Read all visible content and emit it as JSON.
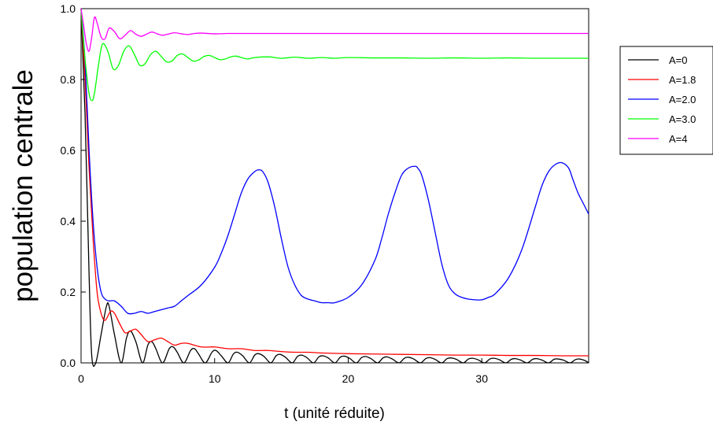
{
  "chart_data": {
    "type": "line",
    "title": "",
    "xlabel": "t (unité réduite)",
    "ylabel": "population centrale",
    "xlim": [
      0,
      38
    ],
    "ylim": [
      0,
      1
    ],
    "xticks": [
      0,
      10,
      20,
      30
    ],
    "xtick_labels": [
      "0",
      "10",
      "20",
      "30"
    ],
    "yticks": [
      0,
      0.2,
      0.4,
      0.6,
      0.8,
      1.0
    ],
    "ytick_labels": [
      "0.0",
      "0.2",
      "0.4",
      "0.6",
      "0.8",
      "1.0"
    ],
    "grid": false,
    "legend": "right",
    "series": [
      {
        "name": "A=0",
        "color": "#000000",
        "x": [
          0,
          0.3,
          0.6,
          0.8,
          1.1,
          1.5,
          1.9,
          2.1,
          2.5,
          3.0,
          3.4,
          3.7,
          4.1,
          4.6,
          5.0,
          5.3,
          5.6,
          6.1,
          6.6,
          6.9,
          7.2,
          7.7,
          8.2,
          8.5,
          8.8,
          9.3,
          9.8,
          10.1,
          10.5,
          11.0,
          11.4,
          11.7,
          12.1,
          12.6,
          13.0,
          13.3,
          13.7,
          14.2,
          14.6,
          14.9,
          15.3,
          15.8,
          16.2,
          16.5,
          16.9,
          17.4,
          17.8,
          18.1,
          18.5,
          19.0,
          19.4,
          19.7,
          20.1,
          20.6,
          21.0,
          21.3,
          21.7,
          22.2,
          22.6,
          22.9,
          23.3,
          23.8,
          24.2,
          24.5,
          24.9,
          25.4,
          25.8,
          26.1,
          26.5,
          27.0,
          27.4,
          27.7,
          28.1,
          28.6,
          29.0,
          29.3,
          29.7,
          30.2,
          30.6,
          30.9,
          31.3,
          31.8,
          32.2,
          32.5,
          32.9,
          33.4,
          33.8,
          34.1,
          34.5,
          35.0,
          35.4,
          35.7,
          36.1,
          36.6,
          37.0,
          37.3,
          37.7,
          38.0
        ],
        "y": [
          1.0,
          0.7,
          0.25,
          0.02,
          0.0,
          0.08,
          0.16,
          0.16,
          0.08,
          0.0,
          0.07,
          0.09,
          0.06,
          0.0,
          0.05,
          0.06,
          0.04,
          0.0,
          0.04,
          0.045,
          0.03,
          0.0,
          0.035,
          0.04,
          0.025,
          0.0,
          0.03,
          0.035,
          0.02,
          0.0,
          0.025,
          0.03,
          0.02,
          0.0,
          0.022,
          0.026,
          0.018,
          0.0,
          0.02,
          0.024,
          0.016,
          0.0,
          0.018,
          0.022,
          0.015,
          0.0,
          0.017,
          0.02,
          0.014,
          0.0,
          0.016,
          0.019,
          0.013,
          0.0,
          0.015,
          0.018,
          0.012,
          0.0,
          0.014,
          0.017,
          0.011,
          0.0,
          0.013,
          0.016,
          0.011,
          0.0,
          0.012,
          0.015,
          0.01,
          0.0,
          0.012,
          0.014,
          0.01,
          0.0,
          0.011,
          0.013,
          0.009,
          0.0,
          0.011,
          0.013,
          0.009,
          0.0,
          0.01,
          0.012,
          0.008,
          0.0,
          0.01,
          0.012,
          0.008,
          0.0,
          0.01,
          0.011,
          0.008,
          0.0,
          0.009,
          0.011,
          0.007,
          0.0
        ]
      },
      {
        "name": "A=1.8",
        "color": "#ff0000",
        "x": [
          0,
          0.3,
          0.6,
          0.9,
          1.2,
          1.5,
          1.8,
          2.2,
          2.5,
          2.9,
          3.3,
          3.7,
          4.1,
          4.5,
          5.0,
          5.5,
          6.0,
          6.5,
          7.0,
          7.5,
          8.0,
          9.0,
          10.0,
          11.0,
          12.0,
          13.0,
          14.0,
          15.0,
          16.0,
          17.0,
          18.0,
          19.0,
          20.0,
          22.0,
          24.0,
          26.0,
          28.0,
          30.0,
          32.0,
          34.0,
          36.0,
          38.0
        ],
        "y": [
          1.0,
          0.8,
          0.55,
          0.35,
          0.2,
          0.14,
          0.12,
          0.145,
          0.14,
          0.11,
          0.085,
          0.09,
          0.095,
          0.08,
          0.06,
          0.065,
          0.07,
          0.06,
          0.05,
          0.055,
          0.055,
          0.045,
          0.045,
          0.04,
          0.04,
          0.035,
          0.035,
          0.032,
          0.03,
          0.03,
          0.028,
          0.027,
          0.026,
          0.025,
          0.024,
          0.023,
          0.022,
          0.022,
          0.021,
          0.021,
          0.02,
          0.02
        ]
      },
      {
        "name": "A=2.0",
        "color": "#0000ff",
        "x": [
          0,
          0.3,
          0.6,
          0.9,
          1.2,
          1.5,
          1.8,
          2.1,
          2.5,
          3.0,
          3.5,
          4.0,
          4.5,
          5.0,
          5.5,
          6.0,
          6.5,
          7.0,
          7.5,
          8.0,
          9.0,
          10.0,
          10.5,
          11.0,
          11.5,
          12.0,
          12.5,
          13.0,
          13.3,
          13.6,
          14.0,
          14.5,
          15.0,
          15.5,
          16.0,
          16.5,
          17.0,
          17.5,
          18.0,
          18.5,
          19.0,
          20.0,
          21.0,
          22.0,
          22.5,
          23.0,
          23.5,
          24.0,
          24.5,
          25.0,
          25.2,
          25.5,
          26.0,
          26.5,
          27.0,
          27.5,
          28.0,
          28.5,
          29.0,
          29.5,
          30.0,
          30.5,
          31.0,
          32.0,
          33.0,
          34.0,
          34.5,
          35.0,
          35.5,
          36.0,
          36.5,
          36.8,
          37.2,
          37.6,
          38.0
        ],
        "y": [
          1.0,
          0.85,
          0.6,
          0.4,
          0.27,
          0.2,
          0.18,
          0.175,
          0.175,
          0.16,
          0.14,
          0.14,
          0.145,
          0.14,
          0.145,
          0.15,
          0.155,
          0.16,
          0.175,
          0.19,
          0.22,
          0.27,
          0.31,
          0.36,
          0.42,
          0.48,
          0.52,
          0.54,
          0.545,
          0.54,
          0.51,
          0.44,
          0.35,
          0.27,
          0.22,
          0.19,
          0.18,
          0.175,
          0.17,
          0.17,
          0.17,
          0.185,
          0.22,
          0.29,
          0.35,
          0.42,
          0.48,
          0.53,
          0.55,
          0.555,
          0.55,
          0.53,
          0.46,
          0.37,
          0.28,
          0.22,
          0.195,
          0.185,
          0.18,
          0.178,
          0.178,
          0.185,
          0.195,
          0.24,
          0.32,
          0.44,
          0.5,
          0.54,
          0.56,
          0.565,
          0.55,
          0.52,
          0.48,
          0.45,
          0.42
        ]
      },
      {
        "name": "A=3.0",
        "color": "#00ff00",
        "x": [
          0,
          0.2,
          0.4,
          0.6,
          0.8,
          1.0,
          1.3,
          1.6,
          2.0,
          2.4,
          2.8,
          3.2,
          3.6,
          4.0,
          4.4,
          4.8,
          5.2,
          5.6,
          6.0,
          6.4,
          6.8,
          7.2,
          7.6,
          8.0,
          8.4,
          8.8,
          9.2,
          9.6,
          10.0,
          10.4,
          10.8,
          11.2,
          11.6,
          12.0,
          12.5,
          13.0,
          14.0,
          15.0,
          16.0,
          17.0,
          18.0,
          19.0,
          20.0,
          22.0,
          24.0,
          26.0,
          28.0,
          30.0,
          32.0,
          34.0,
          36.0,
          38.0
        ],
        "y": [
          1.0,
          0.9,
          0.82,
          0.76,
          0.74,
          0.76,
          0.84,
          0.9,
          0.88,
          0.83,
          0.84,
          0.88,
          0.895,
          0.87,
          0.84,
          0.845,
          0.87,
          0.88,
          0.865,
          0.85,
          0.852,
          0.868,
          0.872,
          0.862,
          0.852,
          0.855,
          0.865,
          0.868,
          0.862,
          0.856,
          0.858,
          0.864,
          0.866,
          0.862,
          0.858,
          0.862,
          0.864,
          0.86,
          0.863,
          0.86,
          0.862,
          0.86,
          0.862,
          0.861,
          0.861,
          0.86,
          0.861,
          0.86,
          0.861,
          0.86,
          0.86,
          0.86
        ]
      },
      {
        "name": "A=4",
        "color": "#ff00ff",
        "x": [
          0,
          0.2,
          0.4,
          0.6,
          0.8,
          1.0,
          1.2,
          1.5,
          1.8,
          2.1,
          2.5,
          2.9,
          3.3,
          3.7,
          4.1,
          4.5,
          4.9,
          5.3,
          5.7,
          6.1,
          6.5,
          7.0,
          7.5,
          8.0,
          8.5,
          9.0,
          10.0,
          11.0,
          12.0,
          14.0,
          16.0,
          18.0,
          20.0,
          24.0,
          28.0,
          32.0,
          36.0,
          38.0
        ],
        "y": [
          1.0,
          0.95,
          0.9,
          0.88,
          0.92,
          0.975,
          0.96,
          0.92,
          0.915,
          0.945,
          0.935,
          0.915,
          0.925,
          0.938,
          0.928,
          0.922,
          0.928,
          0.934,
          0.929,
          0.925,
          0.928,
          0.932,
          0.929,
          0.927,
          0.93,
          0.931,
          0.929,
          0.93,
          0.93,
          0.93,
          0.93,
          0.93,
          0.93,
          0.93,
          0.93,
          0.93,
          0.93,
          0.93
        ]
      }
    ]
  }
}
